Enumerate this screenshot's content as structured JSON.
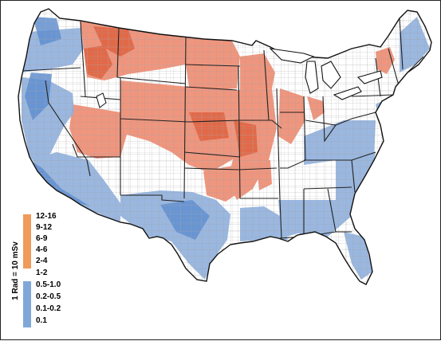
{
  "legend": {
    "unit_label": "1 Rad = 10 mSv",
    "high_color": "#ef9b5a",
    "low_color": "#7fa8d8",
    "high_ranges": [
      "12-16",
      "9-12",
      "6-9",
      "4-6",
      "2-4",
      "1-2"
    ],
    "low_ranges": [
      "0.5-1.0",
      "0.2-0.5",
      "0.1-0.2",
      "0.1"
    ]
  },
  "map": {
    "subject": "contiguous United States by county",
    "orange_color": "#ef8a6f",
    "blue_color": "#8fb0dd",
    "state_border_color": "#222222"
  }
}
